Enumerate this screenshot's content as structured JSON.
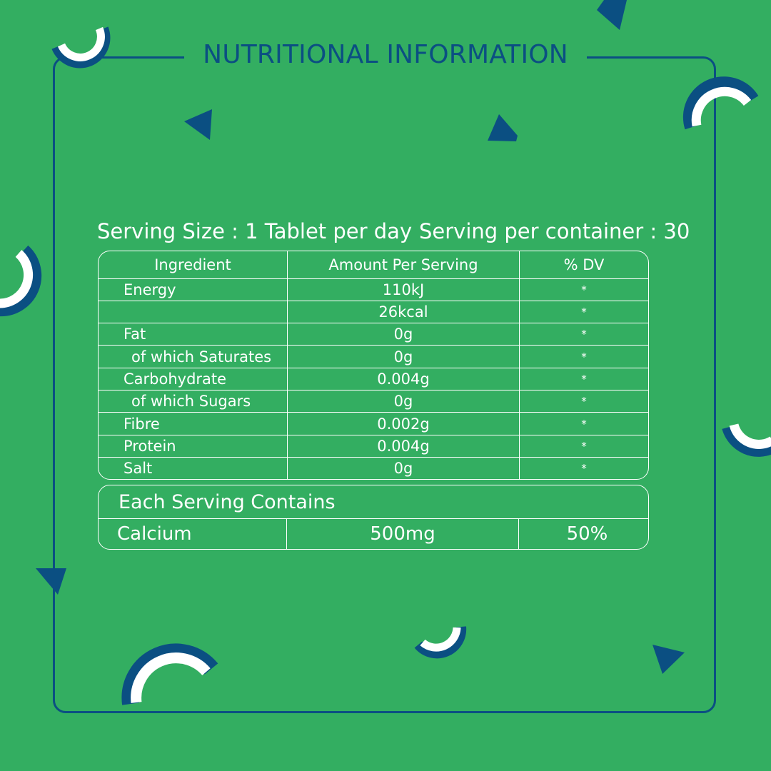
{
  "title": "NUTRITIONAL INFORMATION",
  "serving_size": "Serving Size : 1 Tablet per day",
  "servings_per_container": "Serving per container : 30",
  "table": {
    "headers": [
      "Ingredient",
      "Amount Per Serving",
      "% DV"
    ],
    "rows": [
      {
        "ingredient": "Energy",
        "amount": "110kJ",
        "dv": "*"
      },
      {
        "ingredient": "",
        "amount": "26kcal",
        "dv": "*"
      },
      {
        "ingredient": "Fat",
        "amount": "0g",
        "dv": "*"
      },
      {
        "ingredient": "of which Saturates",
        "amount": "0g",
        "dv": "*"
      },
      {
        "ingredient": "Carbohydrate",
        "amount": "0.004g",
        "dv": "*"
      },
      {
        "ingredient": "of which Sugars",
        "amount": "0g",
        "dv": "*"
      },
      {
        "ingredient": "Fibre",
        "amount": "0.002g",
        "dv": "*"
      },
      {
        "ingredient": "Protein",
        "amount": "0.004g",
        "dv": "*"
      },
      {
        "ingredient": "Salt",
        "amount": "0g",
        "dv": "*"
      }
    ]
  },
  "each_serving": {
    "title": "Each Serving Contains",
    "nutrient": "Calcium",
    "amount": "500mg",
    "dv": "50%"
  },
  "colors": {
    "background": "#33ae61",
    "accent_blue": "#0b4f82",
    "text": "#ffffff"
  }
}
